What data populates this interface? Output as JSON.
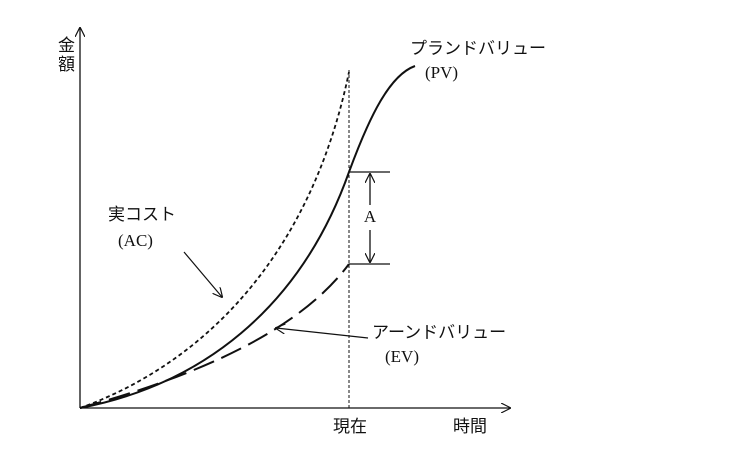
{
  "axes": {
    "y_label": "金額",
    "x_label": "時間",
    "now_label": "現在"
  },
  "curves": {
    "pv": {
      "name": "プランドバリュー",
      "abbr": "(PV)"
    },
    "ac": {
      "name": "実コスト",
      "abbr": "(AC)"
    },
    "ev": {
      "name": "アーンドバリュー",
      "abbr": "(EV)"
    }
  },
  "gap_label": "A"
}
